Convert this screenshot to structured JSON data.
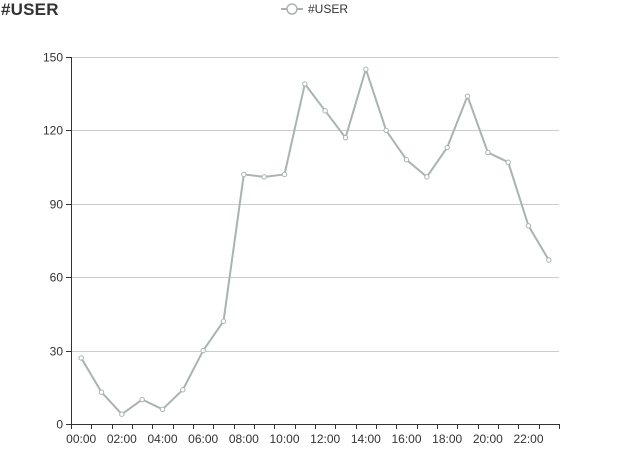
{
  "title": "#USER",
  "legend": {
    "label": "#USER"
  },
  "colors": {
    "series": "#a9b4b2",
    "axis": "#333333",
    "grid": "#cccccc",
    "marker_fill": "#ffffff"
  },
  "chart_data": {
    "type": "line",
    "title": "#USER",
    "xlabel": "",
    "ylabel": "",
    "x": [
      "00:00",
      "01:00",
      "02:00",
      "03:00",
      "04:00",
      "05:00",
      "06:00",
      "07:00",
      "08:00",
      "09:00",
      "10:00",
      "11:00",
      "12:00",
      "13:00",
      "14:00",
      "15:00",
      "16:00",
      "17:00",
      "18:00",
      "19:00",
      "20:00",
      "21:00",
      "22:00",
      "23:00"
    ],
    "x_tick_labels": [
      "00:00",
      "02:00",
      "04:00",
      "06:00",
      "08:00",
      "10:00",
      "12:00",
      "14:00",
      "16:00",
      "18:00",
      "20:00",
      "22:00"
    ],
    "series": [
      {
        "name": "#USER",
        "values": [
          27,
          13,
          4,
          10,
          6,
          14,
          30,
          42,
          102,
          101,
          102,
          139,
          128,
          117,
          145,
          120,
          108,
          101,
          113,
          134,
          111,
          107,
          81,
          67
        ]
      }
    ],
    "ylim": [
      0,
      150
    ],
    "y_ticks": [
      0,
      30,
      60,
      90,
      120,
      150
    ],
    "grid": true,
    "legend_position": "top-center"
  }
}
